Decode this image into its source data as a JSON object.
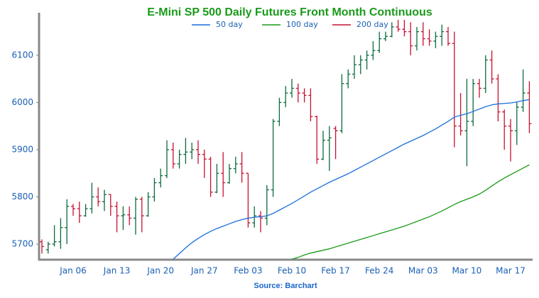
{
  "chart_data": {
    "type": "ohlc",
    "title": "E-Mini SP 500 Daily Futures Front Month Continuous",
    "source": "Source: Barchart",
    "categories": [
      null,
      null,
      null,
      null,
      null,
      "Jan 06",
      null,
      null,
      null,
      null,
      null,
      null,
      "Jan 13",
      null,
      null,
      null,
      null,
      null,
      null,
      "Jan 20",
      null,
      null,
      null,
      null,
      null,
      null,
      "Jan 27",
      null,
      null,
      null,
      null,
      null,
      null,
      "Feb 03",
      null,
      null,
      null,
      null,
      null,
      null,
      "Feb 10",
      null,
      null,
      null,
      null,
      null,
      null,
      "Feb 17",
      null,
      null,
      null,
      null,
      null,
      null,
      "Feb 24",
      null,
      null,
      null,
      null,
      null,
      null,
      "Mar 03",
      null,
      null,
      null,
      null,
      null,
      null,
      "Mar 10",
      null,
      null,
      null,
      null,
      null,
      null,
      "Mar 17",
      null,
      null,
      null
    ],
    "open": [
      5705,
      5688,
      5700,
      5705,
      5735,
      5780,
      5775,
      5760,
      5775,
      5800,
      5790,
      5805,
      5780,
      5760,
      5762,
      5755,
      5795,
      5760,
      5800,
      5830,
      5845,
      5900,
      5870,
      5890,
      5895,
      5900,
      5890,
      5880,
      5810,
      5850,
      5830,
      5860,
      5870,
      5850,
      5745,
      5760,
      5755,
      5815,
      5960,
      6000,
      6020,
      6030,
      6020,
      6015,
      5970,
      5880,
      5920,
      5945,
      5940,
      6040,
      6060,
      6080,
      6090,
      6100,
      6110,
      6135,
      6140,
      6160,
      6155,
      6150,
      6120,
      6150,
      6135,
      6130,
      6140,
      6150,
      6125,
      5950,
      5940,
      5960,
      6040,
      6030,
      6090,
      6050,
      5980,
      5950,
      5940,
      5990,
      6020
    ],
    "high": [
      5710,
      5705,
      5740,
      5755,
      5795,
      5785,
      5790,
      5785,
      5830,
      5820,
      5815,
      5806,
      5790,
      5780,
      5780,
      5800,
      5800,
      5810,
      5840,
      5860,
      5920,
      5915,
      5900,
      5925,
      5915,
      5920,
      5900,
      5885,
      5870,
      5895,
      5870,
      5885,
      5895,
      5850,
      5780,
      5770,
      5825,
      5965,
      6010,
      6035,
      6050,
      6040,
      6030,
      6030,
      5972,
      5940,
      5950,
      5950,
      6060,
      6070,
      6100,
      6100,
      6110,
      6130,
      6150,
      6150,
      6170,
      6175,
      6175,
      6170,
      6160,
      6170,
      6155,
      6150,
      6165,
      6160,
      6150,
      6020,
      6050,
      6050,
      6050,
      6100,
      6110,
      6060,
      5985,
      5965,
      6000,
      6070,
      6045
    ],
    "low": [
      5680,
      5680,
      5695,
      5690,
      5700,
      5760,
      5745,
      5758,
      5765,
      5780,
      5770,
      5760,
      5725,
      5730,
      5740,
      5720,
      5725,
      5758,
      5790,
      5820,
      5840,
      5860,
      5860,
      5870,
      5880,
      5870,
      5840,
      5800,
      5808,
      5800,
      5828,
      5850,
      5830,
      5735,
      5735,
      5725,
      5740,
      5800,
      5950,
      5990,
      6010,
      6000,
      6000,
      5960,
      5870,
      5878,
      5855,
      5880,
      5935,
      6030,
      6050,
      6060,
      6070,
      6090,
      6105,
      6130,
      6138,
      6150,
      6140,
      6100,
      6110,
      6120,
      6120,
      6115,
      6120,
      6120,
      5905,
      5930,
      5865,
      5950,
      6010,
      6020,
      6040,
      5960,
      5900,
      5875,
      5910,
      5980,
      5935
    ],
    "close": [
      5695,
      5700,
      5705,
      5735,
      5780,
      5775,
      5760,
      5775,
      5800,
      5790,
      5805,
      5780,
      5760,
      5762,
      5755,
      5795,
      5760,
      5800,
      5830,
      5845,
      5900,
      5870,
      5890,
      5895,
      5900,
      5890,
      5880,
      5810,
      5850,
      5830,
      5860,
      5870,
      5850,
      5745,
      5760,
      5755,
      5815,
      5960,
      6000,
      6020,
      6030,
      6020,
      6015,
      5970,
      5880,
      5920,
      5925,
      5940,
      6040,
      6060,
      6080,
      6090,
      6100,
      6110,
      6135,
      6140,
      6160,
      6155,
      6150,
      6120,
      6150,
      6135,
      6130,
      6140,
      6150,
      6125,
      5950,
      5940,
      5960,
      6040,
      6030,
      6090,
      6050,
      5980,
      5950,
      5940,
      5990,
      6020,
      5955
    ],
    "up_color": "#0b6b3c",
    "down_color": "#c8102e",
    "series": [
      {
        "name": "50 day",
        "color": "#1a6fdc",
        "values": [
          null,
          null,
          null,
          null,
          null,
          null,
          null,
          null,
          null,
          null,
          null,
          null,
          null,
          null,
          null,
          null,
          null,
          null,
          null,
          null,
          null,
          5668,
          5680,
          5692,
          5703,
          5712,
          5720,
          5727,
          5733,
          5738,
          5743,
          5748,
          5752,
          5755,
          5757,
          5758,
          5760,
          5765,
          5772,
          5779,
          5786,
          5794,
          5802,
          5810,
          5817,
          5824,
          5831,
          5837,
          5843,
          5849,
          5856,
          5863,
          5870,
          5877,
          5884,
          5891,
          5898,
          5905,
          5912,
          5918,
          5924,
          5930,
          5937,
          5944,
          5952,
          5960,
          5969,
          5973,
          5976,
          5981,
          5986,
          5991,
          5995,
          5997,
          5998,
          5999,
          6001,
          6004,
          6006
        ]
      },
      {
        "name": "100 day",
        "color": "#1a9a1a",
        "values": [
          null,
          null,
          null,
          null,
          null,
          null,
          null,
          null,
          null,
          null,
          null,
          null,
          null,
          null,
          null,
          null,
          null,
          null,
          null,
          null,
          null,
          null,
          null,
          null,
          null,
          null,
          null,
          null,
          null,
          null,
          null,
          null,
          null,
          null,
          null,
          null,
          null,
          null,
          null,
          null,
          5668,
          5672,
          5677,
          5681,
          5684,
          5687,
          5690,
          5694,
          5698,
          5702,
          5706,
          5710,
          5714,
          5718,
          5722,
          5726,
          5730,
          5734,
          5738,
          5743,
          5748,
          5753,
          5758,
          5764,
          5770,
          5777,
          5784,
          5790,
          5795,
          5800,
          5806,
          5814,
          5823,
          5832,
          5840,
          5847,
          5854,
          5861,
          5868
        ]
      },
      {
        "name": "200 day",
        "color": "#c8102e",
        "values": [
          null,
          null,
          null,
          null,
          null,
          null,
          null,
          null,
          null,
          null,
          null,
          null,
          null,
          null,
          null,
          null,
          null,
          null,
          null,
          null,
          null,
          null,
          null,
          null,
          null,
          null,
          null,
          null,
          null,
          null,
          null,
          null,
          null,
          null,
          null,
          null,
          null,
          null,
          null,
          null,
          null,
          null,
          null,
          null,
          null,
          null,
          null,
          null,
          null,
          null,
          null,
          null,
          null,
          null,
          null,
          null,
          null,
          null,
          null,
          null,
          null,
          null,
          null,
          null,
          null,
          null,
          null,
          null,
          null,
          null,
          null,
          null,
          null,
          null,
          null,
          null,
          null,
          null,
          null
        ]
      }
    ],
    "ylim": [
      5667,
      6190
    ],
    "yticks": [
      5700,
      5800,
      5900,
      6000,
      6100
    ],
    "grid": false
  }
}
